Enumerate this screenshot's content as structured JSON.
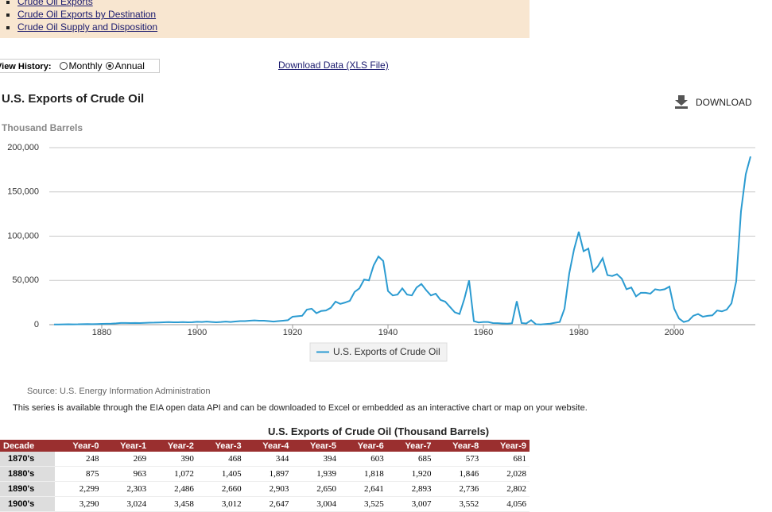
{
  "links": [
    "Crude Oil Exports",
    "Crude Oil Exports by Destination",
    "Crude Oil Supply and Disposition"
  ],
  "view_history": {
    "label": "View History:",
    "options": [
      "Monthly",
      "Annual"
    ],
    "selected": 1
  },
  "download_data": "Download Data (XLS File)",
  "download_button": "DOWNLOAD",
  "chart_data": {
    "type": "line",
    "title": "U.S. Exports of Crude Oil",
    "y_label": "Thousand Barrels",
    "x": [
      1870,
      1871,
      1872,
      1873,
      1874,
      1875,
      1876,
      1877,
      1878,
      1879,
      1880,
      1881,
      1882,
      1883,
      1884,
      1885,
      1886,
      1887,
      1888,
      1889,
      1890,
      1891,
      1892,
      1893,
      1894,
      1895,
      1896,
      1897,
      1898,
      1899,
      1900,
      1901,
      1902,
      1903,
      1904,
      1905,
      1906,
      1907,
      1908,
      1909,
      1910,
      1911,
      1912,
      1913,
      1914,
      1915,
      1916,
      1917,
      1918,
      1919,
      1920,
      1921,
      1922,
      1923,
      1924,
      1925,
      1926,
      1927,
      1928,
      1929,
      1930,
      1931,
      1932,
      1933,
      1934,
      1935,
      1936,
      1937,
      1938,
      1939,
      1940,
      1941,
      1942,
      1943,
      1944,
      1945,
      1946,
      1947,
      1948,
      1949,
      1950,
      1951,
      1952,
      1953,
      1954,
      1955,
      1956,
      1957,
      1958,
      1959,
      1960,
      1961,
      1962,
      1963,
      1964,
      1965,
      1966,
      1967,
      1968,
      1969,
      1970,
      1971,
      1972,
      1973,
      1974,
      1975,
      1976,
      1977,
      1978,
      1979,
      1980,
      1981,
      1982,
      1983,
      1984,
      1985,
      1986,
      1987,
      1988,
      1989,
      1990,
      1991,
      1992,
      1993,
      1994,
      1995,
      1996,
      1997,
      1998,
      1999,
      2000,
      2001,
      2002,
      2003,
      2004,
      2005,
      2006,
      2007,
      2008,
      2009,
      2010,
      2011,
      2012,
      2013,
      2014,
      2015,
      2016
    ],
    "series": [
      {
        "name": "U.S. Exports of Crude Oil",
        "color": "#2b9bd1",
        "values": [
          248,
          269,
          390,
          468,
          344,
          394,
          603,
          685,
          573,
          681,
          875,
          963,
          1072,
          1405,
          1897,
          1939,
          1818,
          1920,
          1846,
          2028,
          2299,
          2303,
          2486,
          2660,
          2903,
          2650,
          2641,
          2893,
          2736,
          2802,
          3290,
          3024,
          3458,
          3012,
          2647,
          3004,
          3525,
          3007,
          3552,
          4056,
          4000,
          4500,
          4800,
          4500,
          4500,
          4000,
          3500,
          4000,
          4500,
          5000,
          9000,
          9500,
          10000,
          17000,
          18000,
          13000,
          15500,
          16000,
          19000,
          26000,
          23500,
          25000,
          27000,
          37000,
          41000,
          51000,
          50000,
          67000,
          77000,
          72000,
          38000,
          33000,
          34000,
          41000,
          34000,
          33000,
          42000,
          46000,
          39000,
          33000,
          35000,
          28000,
          26000,
          20000,
          14000,
          12000,
          29000,
          50000,
          4000,
          2500,
          3000,
          3000,
          1800,
          1700,
          1400,
          1100,
          1600,
          26500,
          1800,
          1400,
          5000,
          500,
          200,
          700,
          1100,
          2100,
          3000,
          18000,
          58000,
          85000,
          105000,
          83000,
          86000,
          60000,
          66000,
          75000,
          56000,
          55000,
          57000,
          52000,
          40000,
          42000,
          32000,
          36000,
          36000,
          35000,
          40000,
          39000,
          40000,
          43000,
          18000,
          7000,
          3000,
          4500,
          10000,
          12000,
          9000,
          10000,
          10500,
          16000,
          15000,
          17000,
          24000,
          49000,
          128000,
          170000,
          190000
        ]
      }
    ],
    "xlim": [
      1869,
      2017
    ],
    "xticks": [
      1880,
      1900,
      1920,
      1940,
      1960,
      1980,
      2000
    ],
    "ylim": [
      0,
      200000
    ],
    "yticks": [
      0,
      {
        "value": 50000,
        "label": "50,000"
      },
      {
        "value": 100000,
        "label": "100,000"
      },
      {
        "value": 150000,
        "label": "150,000"
      },
      {
        "value": 200000,
        "label": "200,000"
      }
    ],
    "grid": true
  },
  "source": "Source: U.S. Energy Information Administration",
  "api_note": "This series is available through the EIA open data API and can be downloaded to Excel or embedded as an interactive chart or map on your website.",
  "table": {
    "title": "U.S. Exports of Crude Oil (Thousand Barrels)",
    "columns": [
      "Decade",
      "Year-0",
      "Year-1",
      "Year-2",
      "Year-3",
      "Year-4",
      "Year-5",
      "Year-6",
      "Year-7",
      "Year-8",
      "Year-9"
    ],
    "rows": [
      [
        "1870's",
        "248",
        "269",
        "390",
        "468",
        "344",
        "394",
        "603",
        "685",
        "573",
        "681"
      ],
      [
        "1880's",
        "875",
        "963",
        "1,072",
        "1,405",
        "1,897",
        "1,939",
        "1,818",
        "1,920",
        "1,846",
        "2,028"
      ],
      [
        "1890's",
        "2,299",
        "2,303",
        "2,486",
        "2,660",
        "2,903",
        "2,650",
        "2,641",
        "2,893",
        "2,736",
        "2,802"
      ],
      [
        "1900's",
        "3,290",
        "3,024",
        "3,458",
        "3,012",
        "2,647",
        "3,004",
        "3,525",
        "3,007",
        "3,552",
        "4,056"
      ]
    ]
  }
}
